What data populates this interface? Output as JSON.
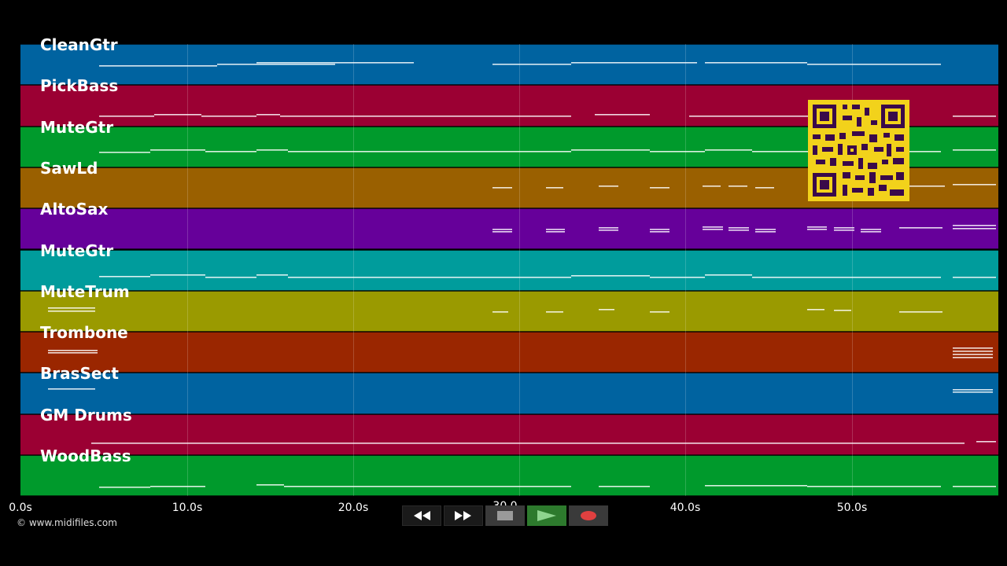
{
  "tracks": [
    {
      "name": "CleanGtr",
      "color": "#0063a0",
      "notes": [
        [
          100,
          250,
          26
        ],
        [
          250,
          400,
          24
        ],
        [
          300,
          500,
          22
        ],
        [
          600,
          700,
          24
        ],
        [
          700,
          860,
          22
        ],
        [
          870,
          1000,
          22
        ],
        [
          1000,
          1170,
          24
        ]
      ]
    },
    {
      "name": "PickBass",
      "color": "#9b0033",
      "notes": [
        [
          100,
          170,
          38
        ],
        [
          170,
          230,
          36
        ],
        [
          230,
          300,
          38
        ],
        [
          300,
          330,
          36
        ],
        [
          330,
          600,
          38
        ],
        [
          600,
          700,
          38
        ],
        [
          730,
          800,
          36
        ],
        [
          850,
          960,
          38
        ],
        [
          960,
          1100,
          38
        ],
        [
          1185,
          1240,
          38
        ]
      ]
    },
    {
      "name": "MuteGtr",
      "color": "#009a2c",
      "notes": [
        [
          100,
          165,
          31
        ],
        [
          165,
          235,
          28
        ],
        [
          235,
          300,
          30
        ],
        [
          300,
          340,
          28
        ],
        [
          340,
          460,
          30
        ],
        [
          460,
          560,
          30
        ],
        [
          560,
          700,
          30
        ],
        [
          700,
          800,
          28
        ],
        [
          800,
          870,
          30
        ],
        [
          870,
          930,
          28
        ],
        [
          930,
          1000,
          30
        ],
        [
          1000,
          1170,
          30
        ],
        [
          1185,
          1240,
          28
        ]
      ]
    },
    {
      "name": "SawLd",
      "color": "#9a6000",
      "notes": [
        [
          600,
          625,
          24
        ],
        [
          668,
          690,
          24
        ],
        [
          735,
          760,
          22
        ],
        [
          800,
          825,
          24
        ],
        [
          867,
          890,
          22
        ],
        [
          900,
          924,
          22
        ],
        [
          934,
          958,
          24
        ],
        [
          1120,
          1175,
          22
        ],
        [
          1185,
          1240,
          20
        ]
      ]
    },
    {
      "name": "AltoSax",
      "color": "#66009a",
      "notes": [
        [
          600,
          625,
          25
        ],
        [
          600,
          625,
          28
        ],
        [
          668,
          692,
          25
        ],
        [
          668,
          692,
          28
        ],
        [
          735,
          760,
          23
        ],
        [
          735,
          760,
          26
        ],
        [
          800,
          825,
          25
        ],
        [
          800,
          825,
          28
        ],
        [
          867,
          893,
          22
        ],
        [
          867,
          893,
          25
        ],
        [
          900,
          926,
          23
        ],
        [
          900,
          926,
          26
        ],
        [
          934,
          960,
          25
        ],
        [
          934,
          960,
          28
        ],
        [
          1000,
          1025,
          22
        ],
        [
          1000,
          1025,
          25
        ],
        [
          1034,
          1060,
          23
        ],
        [
          1034,
          1060,
          26
        ],
        [
          1068,
          1094,
          25
        ],
        [
          1068,
          1094,
          28
        ],
        [
          1117,
          1172,
          23
        ],
        [
          1185,
          1240,
          20
        ],
        [
          1185,
          1240,
          24
        ]
      ]
    },
    {
      "name": "MuteGtr",
      "color": "#009c9c",
      "notes": [
        [
          100,
          165,
          32
        ],
        [
          165,
          235,
          30
        ],
        [
          235,
          300,
          33
        ],
        [
          300,
          340,
          30
        ],
        [
          340,
          460,
          33
        ],
        [
          460,
          560,
          33
        ],
        [
          560,
          700,
          33
        ],
        [
          700,
          800,
          31
        ],
        [
          800,
          870,
          33
        ],
        [
          870,
          930,
          30
        ],
        [
          930,
          1000,
          33
        ],
        [
          1000,
          1170,
          33
        ],
        [
          1185,
          1240,
          33
        ]
      ]
    },
    {
      "name": "MuteTrum",
      "color": "#9a9a00",
      "notes": [
        [
          35,
          95,
          20
        ],
        [
          35,
          95,
          24
        ],
        [
          600,
          620,
          25
        ],
        [
          668,
          690,
          25
        ],
        [
          735,
          755,
          22
        ],
        [
          800,
          825,
          25
        ],
        [
          1000,
          1022,
          22
        ],
        [
          1034,
          1056,
          23
        ],
        [
          1117,
          1172,
          25
        ]
      ]
    },
    {
      "name": "Trombone",
      "color": "#9a2600",
      "notes": [
        [
          35,
          98,
          22
        ],
        [
          35,
          98,
          25
        ],
        [
          1185,
          1236,
          19
        ],
        [
          1185,
          1236,
          23
        ],
        [
          1185,
          1236,
          27
        ],
        [
          1185,
          1236,
          31
        ]
      ]
    },
    {
      "name": "BrasSect",
      "color": "#0063a0",
      "notes": [
        [
          35,
          95,
          19
        ],
        [
          1185,
          1236,
          20
        ],
        [
          1185,
          1236,
          23
        ]
      ]
    },
    {
      "name": "GM Drums",
      "color": "#9b0033",
      "notes": [
        [
          90,
          1200,
          35
        ],
        [
          1215,
          1240,
          33
        ]
      ]
    },
    {
      "name": "WoodBass",
      "color": "#009a2c",
      "notes": [
        [
          100,
          165,
          39
        ],
        [
          165,
          235,
          38
        ],
        [
          300,
          335,
          36
        ],
        [
          335,
          600,
          38
        ],
        [
          600,
          700,
          38
        ],
        [
          735,
          800,
          38
        ],
        [
          870,
          1000,
          37
        ],
        [
          1000,
          1170,
          38
        ],
        [
          1185,
          1240,
          38
        ]
      ]
    }
  ],
  "axis": {
    "ticks": [
      "0.0s",
      "10.0s",
      "20.0s",
      "40.0s",
      "50.0s"
    ],
    "tick_mid": "30.0"
  },
  "copyright": "© www.midifiles.com",
  "transport": {
    "rewind_icon": "rewind-icon",
    "forward_icon": "fast-forward-icon",
    "stop_icon": "stop-icon",
    "play_icon": "play-icon",
    "record_icon": "record-icon"
  }
}
